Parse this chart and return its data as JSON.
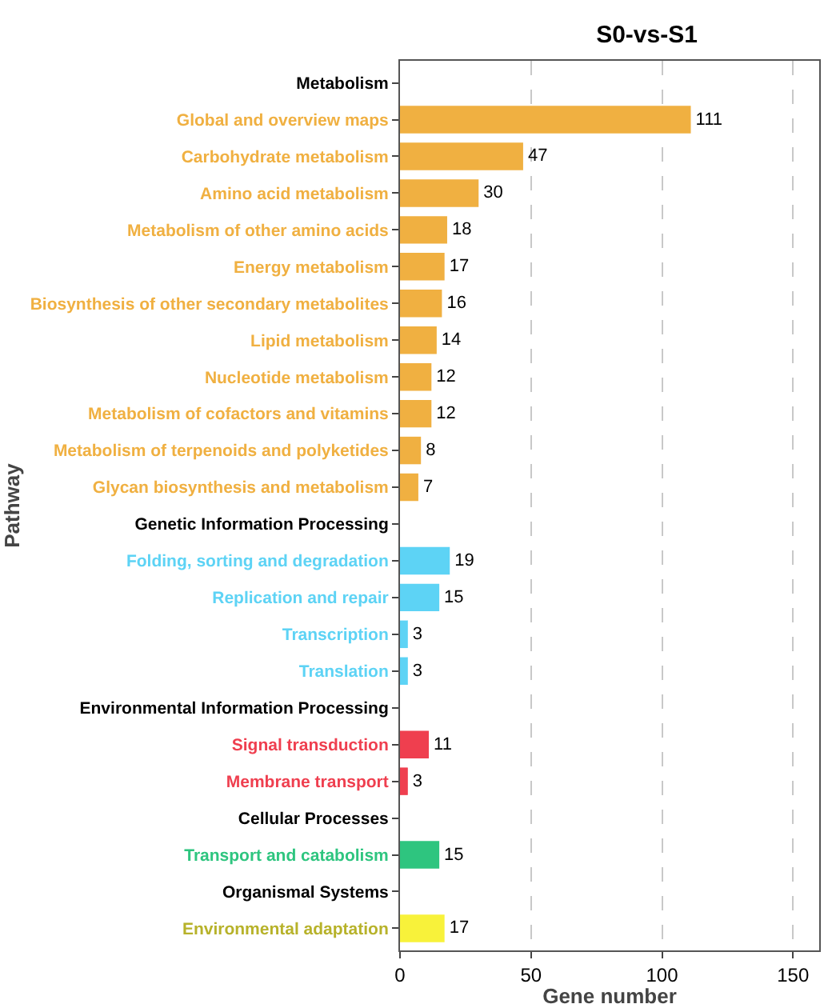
{
  "chart_data": {
    "type": "bar",
    "orientation": "horizontal",
    "title": "S0-vs-S1",
    "xlabel": "Gene number",
    "ylabel": "Pathway",
    "categories": [
      "Metabolism",
      "Global and overview maps",
      "Carbohydrate metabolism",
      "Amino acid metabolism",
      "Metabolism of other amino acids",
      "Energy metabolism",
      "Biosynthesis of other secondary metabolites",
      "Lipid metabolism",
      "Nucleotide metabolism",
      "Metabolism of cofactors and vitamins",
      "Metabolism of terpenoids and polyketides",
      "Glycan biosynthesis and metabolism",
      "Genetic Information Processing",
      "Folding, sorting and degradation",
      "Replication and repair",
      "Transcription",
      "Translation",
      "Environmental Information Processing",
      "Signal transduction",
      "Membrane transport",
      "Cellular Processes",
      "Transport and catabolism",
      "Organismal Systems",
      "Environmental adaptation"
    ],
    "values": [
      null,
      111,
      47,
      30,
      18,
      17,
      16,
      14,
      12,
      12,
      8,
      7,
      null,
      19,
      15,
      3,
      3,
      null,
      11,
      3,
      null,
      15,
      null,
      17
    ],
    "colors": [
      "#000000",
      "#f0b041",
      "#f0b041",
      "#f0b041",
      "#f0b041",
      "#f0b041",
      "#f0b041",
      "#f0b041",
      "#f0b041",
      "#f0b041",
      "#f0b041",
      "#f0b041",
      "#000000",
      "#5dd3f5",
      "#5dd3f5",
      "#5dd3f5",
      "#5dd3f5",
      "#000000",
      "#ef3f4f",
      "#ef3f4f",
      "#000000",
      "#2ec57f",
      "#000000",
      "#f8f23a"
    ],
    "data_labels": true,
    "xlim": [
      0,
      160
    ],
    "xticks": [
      0,
      50,
      100,
      150
    ],
    "grid": "x"
  }
}
